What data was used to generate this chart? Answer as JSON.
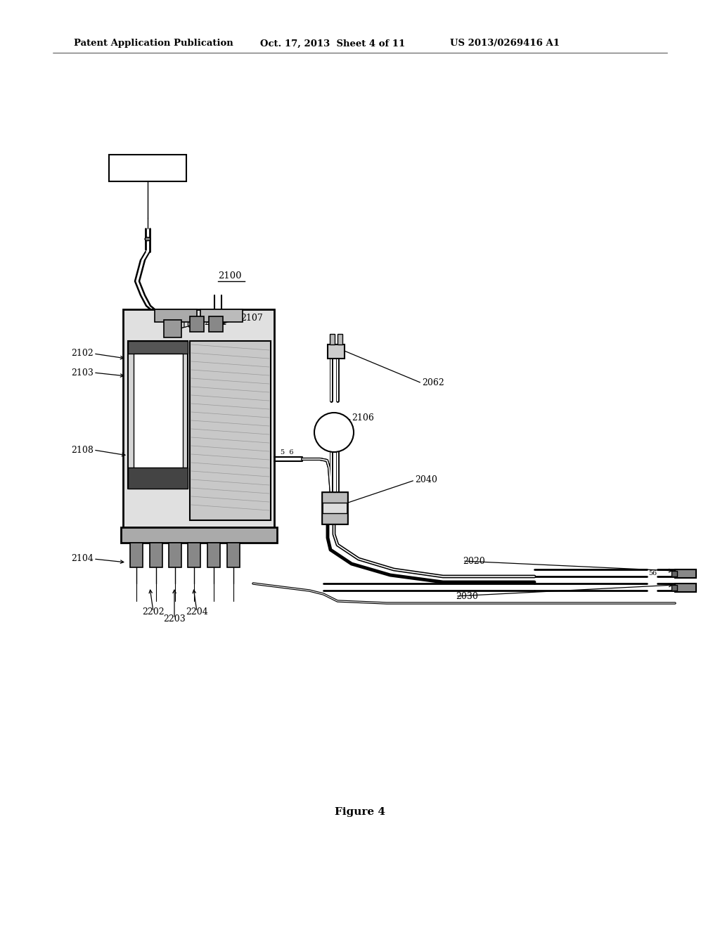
{
  "header_left": "Patent Application Publication",
  "header_mid": "Oct. 17, 2013  Sheet 4 of 11",
  "header_right": "US 2013/0269416 A1",
  "figure_caption": "Figure 4",
  "background_color": "#ffffff"
}
